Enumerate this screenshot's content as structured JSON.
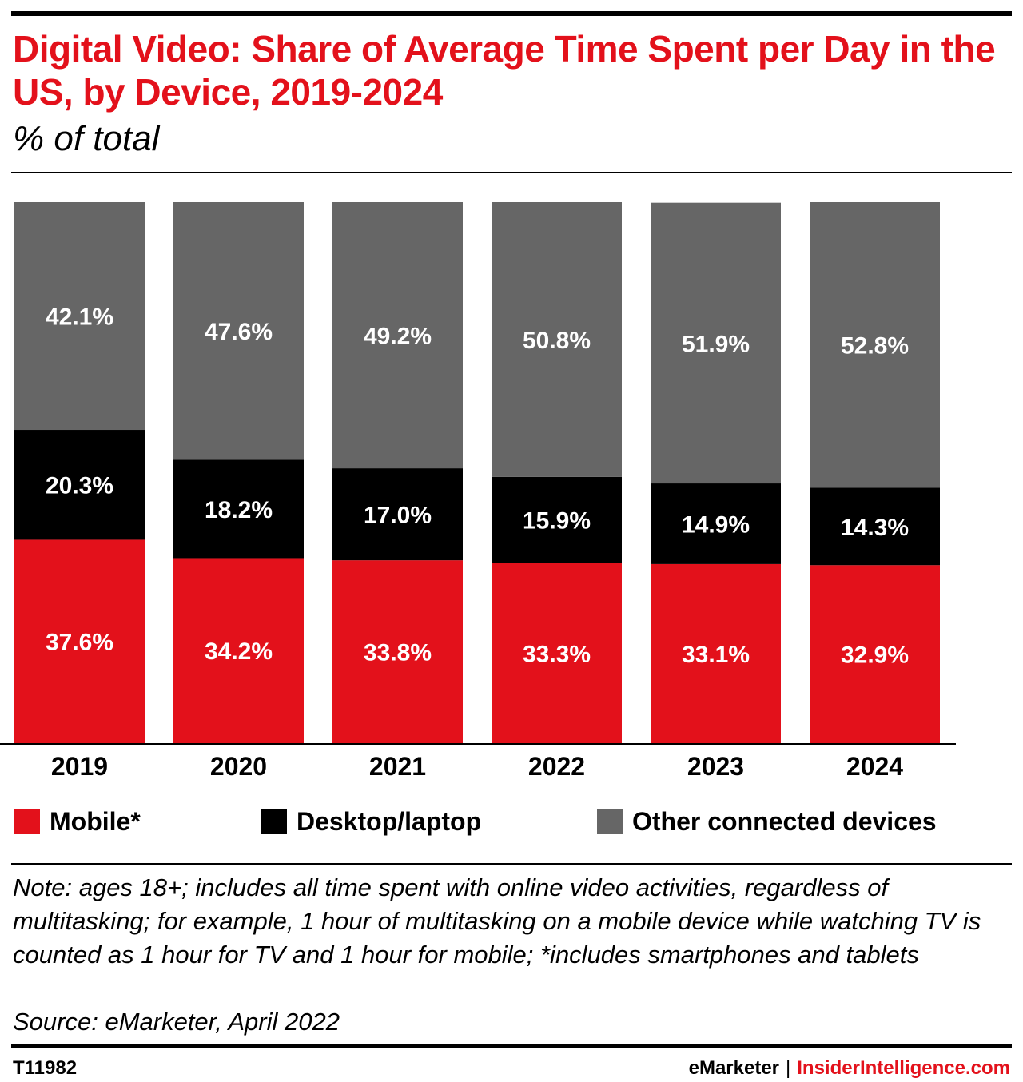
{
  "header": {
    "title": "Digital Video: Share of Average Time Spent per Day in the US, by Device, 2019-2024",
    "subtitle": "% of total"
  },
  "chart_data": {
    "type": "bar",
    "stacked": true,
    "categories": [
      "2019",
      "2020",
      "2021",
      "2022",
      "2023",
      "2024"
    ],
    "series": [
      {
        "name": "Mobile*",
        "color": "#e3111b",
        "values": [
          37.6,
          34.2,
          33.8,
          33.3,
          33.1,
          32.9
        ],
        "labels": [
          "37.6%",
          "34.2%",
          "33.8%",
          "33.3%",
          "33.1%",
          "32.9%"
        ]
      },
      {
        "name": "Desktop/laptop",
        "color": "#000000",
        "values": [
          20.3,
          18.2,
          17.0,
          15.9,
          14.9,
          14.3
        ],
        "labels": [
          "20.3%",
          "18.2%",
          "17.0%",
          "15.9%",
          "14.9%",
          "14.3%"
        ]
      },
      {
        "name": "Other connected devices",
        "color": "#666666",
        "values": [
          42.1,
          47.6,
          49.2,
          50.8,
          51.9,
          52.8
        ],
        "labels": [
          "42.1%",
          "47.6%",
          "49.2%",
          "50.8%",
          "51.9%",
          "52.8%"
        ]
      }
    ],
    "ylim": [
      0,
      100
    ],
    "grid": false,
    "legend": "bottom"
  },
  "footer": {
    "note": "Note: ages 18+; includes all time spent with online video activities, regardless of multitasking; for example, 1 hour of multitasking on a mobile device while watching TV is counted as 1 hour for TV and 1 hour for mobile; *includes smartphones and tablets",
    "source": "Source: eMarketer, April 2022",
    "chart_id": "T11982",
    "brand_primary": "eMarketer",
    "brand_separator": "|",
    "brand_secondary": "InsiderIntelligence.com"
  }
}
